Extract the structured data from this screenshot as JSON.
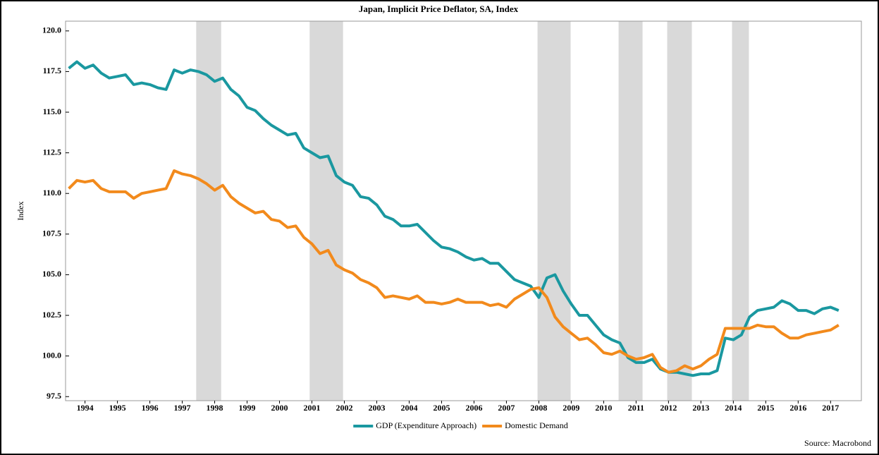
{
  "chart_data": {
    "type": "line",
    "title": "Japan, Implicit Price Deflator, SA, Index",
    "y_label": "Index",
    "source": "Source: Macrobond",
    "x": [
      1994,
      1994.25,
      1994.5,
      1994.75,
      1995,
      1995.25,
      1995.5,
      1995.75,
      1996,
      1996.25,
      1996.5,
      1996.75,
      1997,
      1997.25,
      1997.5,
      1997.75,
      1998,
      1998.25,
      1998.5,
      1998.75,
      1999,
      1999.25,
      1999.5,
      1999.75,
      2000,
      2000.25,
      2000.5,
      2000.75,
      2001,
      2001.25,
      2001.5,
      2001.75,
      2002,
      2002.25,
      2002.5,
      2002.75,
      2003,
      2003.25,
      2003.5,
      2003.75,
      2004,
      2004.25,
      2004.5,
      2004.75,
      2005,
      2005.25,
      2005.5,
      2005.75,
      2006,
      2006.25,
      2006.5,
      2006.75,
      2007,
      2007.25,
      2007.5,
      2007.75,
      2008,
      2008.25,
      2008.5,
      2008.75,
      2009,
      2009.25,
      2009.5,
      2009.75,
      2010,
      2010.25,
      2010.5,
      2010.75,
      2011,
      2011.25,
      2011.5,
      2011.75,
      2012,
      2012.25,
      2012.5,
      2012.75,
      2013,
      2013.25,
      2013.5,
      2013.75,
      2014,
      2014.25,
      2014.5,
      2014.75,
      2015,
      2015.25,
      2015.5,
      2015.75,
      2016,
      2016.25,
      2016.5,
      2016.75,
      2017,
      2017.25,
      2017.5,
      2017.75
    ],
    "series": [
      {
        "name": "GDP (Expenditure Approach)",
        "color": "#1a98a0",
        "values": [
          117.7,
          118.1,
          117.7,
          117.9,
          117.4,
          117.1,
          117.2,
          117.3,
          116.7,
          116.8,
          116.7,
          116.5,
          116.4,
          117.6,
          117.4,
          117.6,
          117.5,
          117.3,
          116.9,
          117.1,
          116.4,
          116.0,
          115.3,
          115.1,
          114.6,
          114.2,
          113.9,
          113.6,
          113.7,
          112.8,
          112.5,
          112.2,
          112.3,
          111.1,
          110.7,
          110.5,
          109.8,
          109.7,
          109.3,
          108.6,
          108.4,
          108.0,
          108.0,
          108.1,
          107.6,
          107.1,
          106.7,
          106.6,
          106.4,
          106.1,
          105.9,
          106.0,
          105.7,
          105.7,
          105.2,
          104.7,
          104.5,
          104.3,
          103.6,
          104.8,
          105.0,
          104.0,
          103.2,
          102.5,
          102.5,
          101.9,
          101.3,
          101.0,
          100.8,
          99.9,
          99.6,
          99.6,
          99.8,
          99.2,
          99.0,
          99.0,
          98.9,
          98.8,
          98.9,
          98.9,
          99.1,
          101.1,
          101.0,
          101.3,
          102.4,
          102.8,
          102.9,
          103.0,
          103.4,
          103.2,
          102.8,
          102.8,
          102.6,
          102.9,
          103.0,
          102.8
        ]
      },
      {
        "name": "Domestic Demand",
        "color": "#f28a1c",
        "values": [
          110.3,
          110.8,
          110.7,
          110.8,
          110.3,
          110.1,
          110.1,
          110.1,
          109.7,
          110.0,
          110.1,
          110.2,
          110.3,
          111.4,
          111.2,
          111.1,
          110.9,
          110.6,
          110.2,
          110.5,
          109.8,
          109.4,
          109.1,
          108.8,
          108.9,
          108.4,
          108.3,
          107.9,
          108.0,
          107.3,
          106.9,
          106.3,
          106.5,
          105.6,
          105.3,
          105.1,
          104.7,
          104.5,
          104.2,
          103.6,
          103.7,
          103.6,
          103.5,
          103.7,
          103.3,
          103.3,
          103.2,
          103.3,
          103.5,
          103.3,
          103.3,
          103.3,
          103.1,
          103.2,
          103.0,
          103.5,
          103.8,
          104.1,
          104.2,
          103.6,
          102.4,
          101.8,
          101.4,
          101.0,
          101.1,
          100.7,
          100.2,
          100.1,
          100.3,
          100.0,
          99.8,
          99.9,
          100.1,
          99.3,
          99.0,
          99.1,
          99.4,
          99.2,
          99.4,
          99.8,
          100.1,
          101.7,
          101.7,
          101.7,
          101.7,
          101.9,
          101.8,
          101.8,
          101.4,
          101.1,
          101.1,
          101.3,
          101.4,
          101.5,
          101.6,
          101.9
        ]
      }
    ],
    "shaded": [
      [
        1997.93,
        1998.7
      ],
      [
        2001.43,
        2002.46
      ],
      [
        2008.46,
        2009.48
      ],
      [
        2010.96,
        2011.7
      ],
      [
        2012.46,
        2013.22
      ],
      [
        2014.46,
        2014.98
      ]
    ],
    "shade_color": "#d9d9d9",
    "xlim": [
      1993.9,
      2018.45
    ],
    "xticks": [
      {
        "value": 1994.5,
        "label": "1994"
      },
      {
        "value": 1995.5,
        "label": "1995"
      },
      {
        "value": 1996.5,
        "label": "1996"
      },
      {
        "value": 1997.5,
        "label": "1997"
      },
      {
        "value": 1998.5,
        "label": "1998"
      },
      {
        "value": 1999.5,
        "label": "1999"
      },
      {
        "value": 2000.5,
        "label": "2000"
      },
      {
        "value": 2001.5,
        "label": "2001"
      },
      {
        "value": 2002.5,
        "label": "2002"
      },
      {
        "value": 2003.5,
        "label": "2003"
      },
      {
        "value": 2004.5,
        "label": "2004"
      },
      {
        "value": 2005.5,
        "label": "2005"
      },
      {
        "value": 2006.5,
        "label": "2006"
      },
      {
        "value": 2007.5,
        "label": "2007"
      },
      {
        "value": 2008.5,
        "label": "2008"
      },
      {
        "value": 2009.5,
        "label": "2009"
      },
      {
        "value": 2010.5,
        "label": "2010"
      },
      {
        "value": 2011.5,
        "label": "2011"
      },
      {
        "value": 2012.5,
        "label": "2012"
      },
      {
        "value": 2013.5,
        "label": "2013"
      },
      {
        "value": 2014.5,
        "label": "2014"
      },
      {
        "value": 2015.5,
        "label": "2015"
      },
      {
        "value": 2016.5,
        "label": "2016"
      },
      {
        "value": 2017.5,
        "label": "2017"
      }
    ],
    "ylim": [
      97.25,
      120.6
    ],
    "yticks": [
      97.5,
      {
        "value": 100,
        "label": "100.0"
      },
      102.5,
      {
        "value": 105,
        "label": "105.0"
      },
      107.5,
      {
        "value": 110,
        "label": "110.0"
      },
      112.5,
      {
        "value": 115,
        "label": "115.0"
      },
      117.5,
      {
        "value": 120,
        "label": "120.0"
      }
    ],
    "legend": "bottom"
  }
}
